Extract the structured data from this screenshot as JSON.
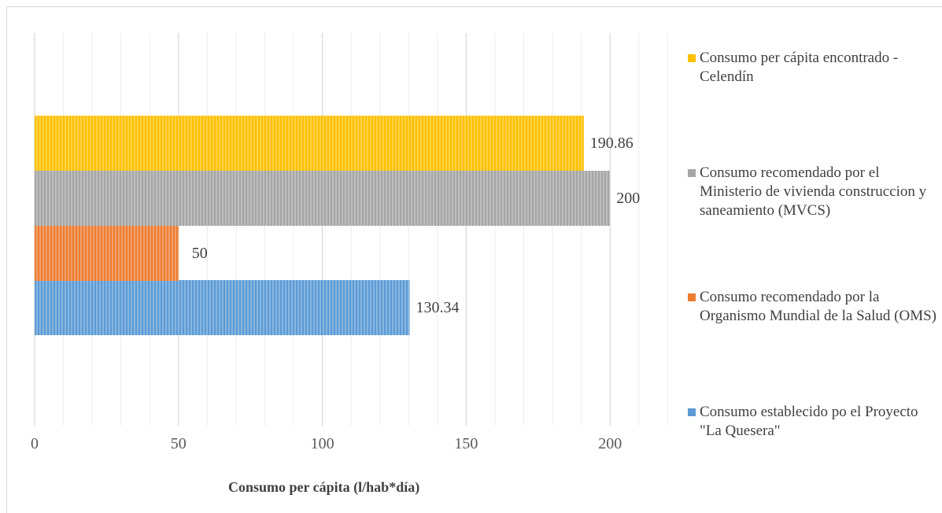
{
  "chart_data": {
    "type": "bar",
    "orientation": "horizontal",
    "xlabel": "Consumo per cápita (l/hab*día)",
    "xlim": [
      0,
      230
    ],
    "xticks": [
      0,
      50,
      100,
      150,
      200
    ],
    "grid": true,
    "legend_position": "right",
    "series": [
      {
        "name": "Consumo establecido po el Proyecto \"La Quesera\"",
        "value": 130.34,
        "label": "130.34",
        "color": "#5b9bd5"
      },
      {
        "name": "Consumo recomendado por la Organismo Mundial de la Salud (OMS)",
        "value": 50,
        "label": "50",
        "color": "#ed7d31"
      },
      {
        "name": "Consumo recomendado por el Ministerio de vivienda construccion y saneamiento (MVCS)",
        "value": 200,
        "label": "200",
        "color": "#a5a5a5"
      },
      {
        "name": "Consumo per cápita encontrado - Celendín",
        "value": 190.86,
        "label": "190.86",
        "color": "#ffc000"
      }
    ],
    "legend_order": [
      3,
      2,
      1,
      0
    ]
  }
}
